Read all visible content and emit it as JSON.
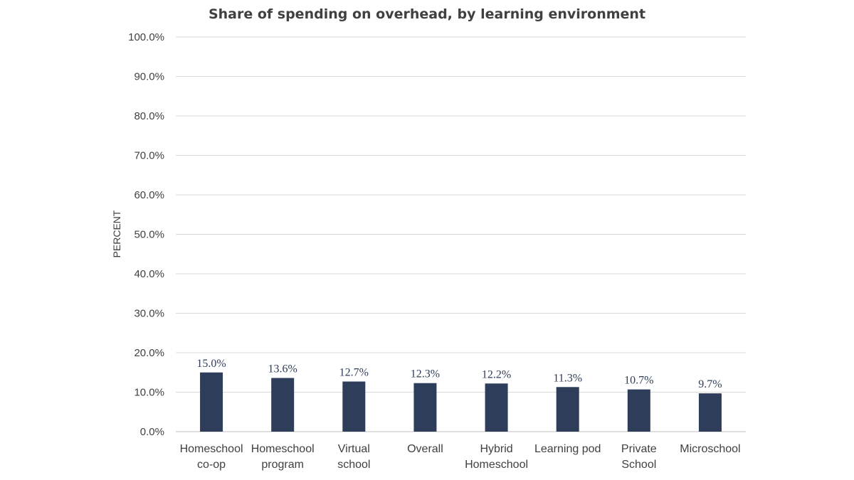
{
  "chart_data": {
    "type": "bar",
    "title": "Share of spending on overhead, by learning environment",
    "xlabel": "",
    "ylabel": "PERCENT",
    "categories": [
      [
        "Homeschool",
        "co-op"
      ],
      [
        "Homeschool",
        "program"
      ],
      [
        "Virtual",
        "school"
      ],
      [
        "Overall"
      ],
      [
        "Hybrid",
        "Homeschool"
      ],
      [
        "Learning pod"
      ],
      [
        "Private",
        "School"
      ],
      [
        "Microschool"
      ]
    ],
    "values": [
      15.0,
      13.6,
      12.7,
      12.3,
      12.2,
      11.3,
      10.7,
      9.7
    ],
    "data_labels": [
      "15.0%",
      "13.6%",
      "12.7%",
      "12.3%",
      "12.2%",
      "11.3%",
      "10.7%",
      "9.7%"
    ],
    "ylim": [
      0,
      100
    ],
    "yticks": [
      0,
      10,
      20,
      30,
      40,
      50,
      60,
      70,
      80,
      90,
      100
    ],
    "ytick_labels": [
      "0.0%",
      "10.0%",
      "20.0%",
      "30.0%",
      "40.0%",
      "50.0%",
      "60.0%",
      "70.0%",
      "80.0%",
      "90.0%",
      "100.0%"
    ],
    "grid": true,
    "legend": "none",
    "bar_color": "#2e3d5a",
    "grid_color": "#d9d9d9"
  }
}
